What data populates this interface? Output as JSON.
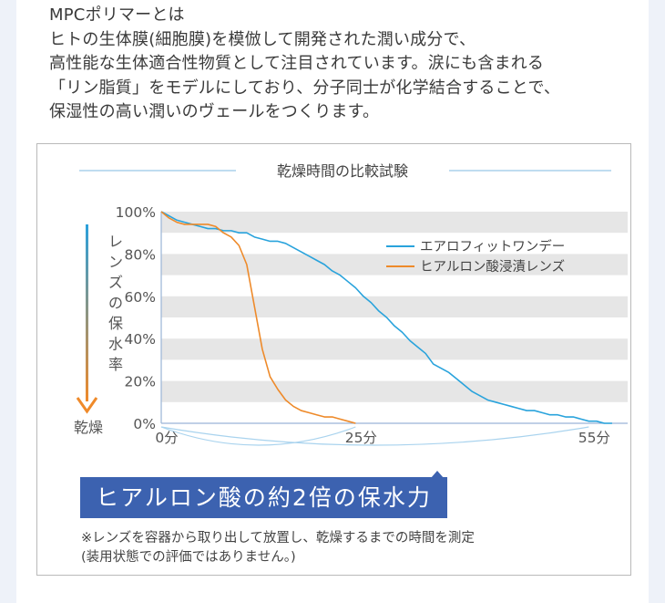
{
  "intro": {
    "lines": [
      "MPCポリマーとは",
      "ヒトの生体膜(細胞膜)を模倣して開発された潤い成分で、",
      "高性能な生体適合性物質として注目されています。涙にも含まれる",
      "「リン脂質」をモデルにしており、分子同士が化学結合することで、",
      "保湿性の高い潤いのヴェールをつくります。"
    ]
  },
  "chart_data": {
    "type": "line",
    "title": "乾燥時間の比較試験",
    "ylabel": "レンズの保水率",
    "ylabel_end": "乾燥",
    "y_ticks": [
      "100%",
      "80%",
      "60%",
      "40%",
      "20%",
      "0%"
    ],
    "x_ticks": [
      "0分",
      "25分",
      "55分"
    ],
    "xlim": [
      0,
      60
    ],
    "ylim": [
      0,
      100
    ],
    "grid": "horizontal bands",
    "legend_position": "top-right",
    "series": [
      {
        "name": "エアロフィットワンデー",
        "color": "#29a3dc",
        "x": [
          0,
          1,
          2,
          3,
          4,
          5,
          6,
          7,
          8,
          9,
          10,
          11,
          12,
          13,
          14,
          15,
          16,
          17,
          18,
          19,
          20,
          21,
          22,
          23,
          24,
          25,
          26,
          27,
          28,
          29,
          30,
          31,
          32,
          33,
          34,
          35,
          36,
          37,
          38,
          39,
          40,
          41,
          42,
          43,
          44,
          45,
          46,
          47,
          48,
          49,
          50,
          51,
          52,
          53,
          54,
          55,
          56,
          57,
          58
        ],
        "y": [
          100,
          98,
          96,
          95,
          94,
          93,
          92,
          92,
          91,
          91,
          90,
          90,
          88,
          87,
          86,
          86,
          85,
          83,
          81,
          79,
          77,
          75,
          72,
          70,
          67,
          64,
          60,
          57,
          53,
          50,
          46,
          43,
          39,
          36,
          33,
          28,
          26,
          24,
          21,
          18,
          15,
          13,
          11,
          10,
          9,
          8,
          7,
          6,
          6,
          5,
          4,
          4,
          3,
          3,
          2,
          1,
          1,
          0,
          0
        ]
      },
      {
        "name": "ヒアルロン酸浸漬レンズ",
        "color": "#ee8a2a",
        "x": [
          0,
          1,
          2,
          3,
          4,
          5,
          6,
          7,
          8,
          9,
          10,
          11,
          12,
          13,
          14,
          15,
          16,
          17,
          18,
          19,
          20,
          21,
          22,
          23,
          24,
          25
        ],
        "y": [
          100,
          97,
          95,
          94,
          94,
          94,
          94,
          93,
          90,
          88,
          84,
          75,
          55,
          35,
          22,
          16,
          11,
          8,
          6,
          5,
          4,
          3,
          3,
          2,
          1,
          0
        ]
      }
    ],
    "callout": "ヒアルロン酸の約2倍の保水力"
  },
  "note": {
    "lines": [
      "※レンズを容器から取り出して放置し、乾燥するまでの時間を測定",
      "(装用状態での評価ではありません。)"
    ]
  }
}
